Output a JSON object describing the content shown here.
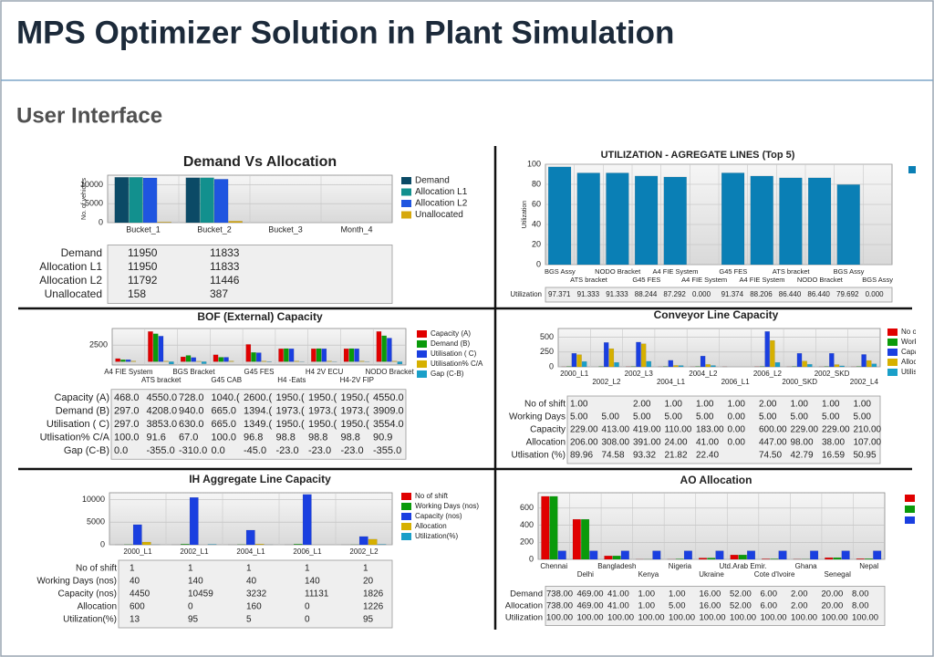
{
  "header": {
    "title": "MPS Optimizer Solution in Plant Simulation",
    "subtitle": "User Interface"
  },
  "chart_data": [
    {
      "type": "bar",
      "title": "Demand Vs Allocation",
      "y_label": "No. of vehicles",
      "categories": [
        "Bucket_1",
        "Bucket_2",
        "Bucket_3",
        "Month_4"
      ],
      "series": [
        {
          "name": "Demand",
          "color": "#0b4a66",
          "values": [
            11950,
            11833,
            null,
            null
          ]
        },
        {
          "name": "Allocation L1",
          "color": "#12908e",
          "values": [
            11950,
            11833,
            null,
            null
          ]
        },
        {
          "name": "Allocation L2",
          "color": "#1f55e0",
          "values": [
            11792,
            11446,
            null,
            null
          ]
        },
        {
          "name": "Unallocated",
          "color": "#d6a80c",
          "values": [
            158,
            387,
            null,
            null
          ]
        }
      ],
      "ylim": [
        0,
        12500
      ],
      "yticks": [
        0,
        5000,
        10000
      ],
      "grid": true,
      "table": {
        "rows": [
          {
            "label": "Demand",
            "cells": [
              "11950",
              "11833"
            ]
          },
          {
            "label": "Allocation L1",
            "cells": [
              "11950",
              "11833"
            ]
          },
          {
            "label": "Allocation L2",
            "cells": [
              "11792",
              "11446"
            ]
          },
          {
            "label": "Unallocated",
            "cells": [
              "158",
              "387"
            ]
          }
        ]
      }
    },
    {
      "type": "bar",
      "title": "UTILIZATION - AGREGATE LINES (Top 5)",
      "y_label": "Utilization",
      "categories": [
        "BGS Assy",
        "ATS bracket",
        "NODO Bracket",
        "G45 FES",
        "A4 FIE System",
        "A4 FIE System",
        "G45 FES",
        "A4 FIE System",
        "ATS bracket",
        "NODO Bracket",
        "BGS Assy",
        "BGS Assy"
      ],
      "series": [
        {
          "name": "Utilization",
          "color": "#0a7fb5",
          "values": [
            97.371,
            91.333,
            91.333,
            88.244,
            87.292,
            0.0,
            91.374,
            88.206,
            86.44,
            86.44,
            79.692,
            0.0
          ]
        }
      ],
      "ylim": [
        0,
        100
      ],
      "yticks": [
        0,
        20,
        40,
        60,
        80,
        100
      ],
      "grid": true,
      "table": {
        "rows": [
          {
            "label": "Utilization",
            "cells": [
              "97.371",
              "91.333",
              "91.333",
              "88.244",
              "87.292",
              "0.000",
              "91.374",
              "88.206",
              "86.440",
              "86.440",
              "79.692",
              "0.000"
            ]
          }
        ]
      }
    },
    {
      "type": "bar",
      "title": "BOF (External) Capacity",
      "categories": [
        "A4 FIE System",
        "ATS bracket",
        "BGS Bracket",
        "G45 CAB",
        "G45 FES",
        "H4 -Eats",
        "H4 2V ECU",
        "H4-2V FIP",
        "NODO Bracket"
      ],
      "series": [
        {
          "name": "Capacity (A)",
          "color": "#e00000",
          "values": [
            468,
            4550,
            728,
            1040,
            2600,
            1950,
            1950,
            1950,
            4550
          ]
        },
        {
          "name": "Demand (B)",
          "color": "#0a9a0a",
          "values": [
            297,
            4208,
            940,
            665,
            1394,
            1973,
            1973,
            1973,
            3909
          ]
        },
        {
          "name": "Utilisation ( C)",
          "color": "#1a3fe0",
          "values": [
            297,
            3853,
            630,
            665,
            1349,
            1950,
            1950,
            1950,
            3554
          ]
        },
        {
          "name": "Utilisation% C/A",
          "color": "#d6b000",
          "values": [
            100,
            91.6,
            67,
            100,
            96.8,
            98.8,
            98.8,
            98.8,
            90.9
          ]
        },
        {
          "name": "Gap (C-B)",
          "color": "#1a9fc8",
          "values": [
            0,
            -355,
            -310,
            0,
            -45,
            -23,
            -23,
            -23,
            -355
          ]
        }
      ],
      "ylim": [
        -500,
        5000
      ],
      "yticks": [
        2500
      ],
      "grid": true,
      "table": {
        "rows": [
          {
            "label": "Capacity (A)",
            "cells": [
              "468.0",
              "4550.0",
              "728.0",
              "1040.(",
              "2600.(",
              "1950.(",
              "1950.(",
              "1950.(",
              "4550.0"
            ]
          },
          {
            "label": "Demand (B)",
            "cells": [
              "297.0",
              "4208.0",
              "940.0",
              "665.0",
              "1394.(",
              "1973.(",
              "1973.(",
              "1973.(",
              "3909.0"
            ]
          },
          {
            "label": "Utilisation ( C)",
            "cells": [
              "297.0",
              "3853.0",
              "630.0",
              "665.0",
              "1349.(",
              "1950.(",
              "1950.(",
              "1950.(",
              "3554.0"
            ]
          },
          {
            "label": "Utlisation% C/A",
            "cells": [
              "100.0",
              "91.6",
              "67.0",
              "100.0",
              "96.8",
              "98.8",
              "98.8",
              "98.8",
              "90.9"
            ]
          },
          {
            "label": "Gap (C-B)",
            "cells": [
              "0.0",
              "-355.0",
              "-310.0",
              "0.0",
              "-45.0",
              "-23.0",
              "-23.0",
              "-23.0",
              "-355.0"
            ]
          }
        ]
      }
    },
    {
      "type": "bar",
      "title": "Conveyor Line Capacity",
      "categories": [
        "2000_L1",
        "2002_L2",
        "2002_L3",
        "2004_L1",
        "2004_L2",
        "2006_L1",
        "2006_L2",
        "2000_SKD",
        "2002_SKD",
        "2002_L4"
      ],
      "series": [
        {
          "name": "No of shift",
          "color": "#e00000",
          "values": [
            1,
            null,
            2,
            1,
            1,
            1,
            2,
            1,
            1,
            1
          ]
        },
        {
          "name": "Working Days",
          "color": "#0a9a0a",
          "values": [
            5,
            5,
            5,
            5,
            5,
            0,
            5,
            5,
            5,
            5
          ]
        },
        {
          "name": "Capacity",
          "color": "#1a3fe0",
          "values": [
            229,
            413,
            419,
            110,
            183,
            0,
            600,
            229,
            229,
            210
          ]
        },
        {
          "name": "Allocation",
          "color": "#d6b000",
          "values": [
            206,
            308,
            391,
            24,
            41,
            0,
            447,
            98,
            38,
            107
          ]
        },
        {
          "name": "Utilisation (%)",
          "color": "#1a9fc8",
          "values": [
            89.96,
            74.58,
            93.32,
            21.82,
            22.4,
            null,
            74.5,
            42.79,
            16.59,
            50.95
          ]
        }
      ],
      "ylim": [
        0,
        650
      ],
      "yticks": [
        0,
        250,
        500
      ],
      "grid": true,
      "table": {
        "rows": [
          {
            "label": "No of shift",
            "cells": [
              "1.00",
              "",
              "2.00",
              "1.00",
              "1.00",
              "1.00",
              "2.00",
              "1.00",
              "1.00",
              "1.00"
            ]
          },
          {
            "label": "Working Days",
            "cells": [
              "5.00",
              "5.00",
              "5.00",
              "5.00",
              "5.00",
              "0.00",
              "5.00",
              "5.00",
              "5.00",
              "5.00"
            ]
          },
          {
            "label": "Capacity",
            "cells": [
              "229.00",
              "413.00",
              "419.00",
              "110.00",
              "183.00",
              "0.00",
              "600.00",
              "229.00",
              "229.00",
              "210.00"
            ]
          },
          {
            "label": "Allocation",
            "cells": [
              "206.00",
              "308.00",
              "391.00",
              "24.00",
              "41.00",
              "0.00",
              "447.00",
              "98.00",
              "38.00",
              "107.00"
            ]
          },
          {
            "label": "Utlisation (%)",
            "cells": [
              "89.96",
              "74.58",
              "93.32",
              "21.82",
              "22.40",
              "",
              "74.50",
              "42.79",
              "16.59",
              "50.95"
            ]
          }
        ]
      }
    },
    {
      "type": "bar",
      "title": "IH Aggregate Line Capacity",
      "categories": [
        "2000_L1",
        "2002_L1",
        "2004_L1",
        "2006_L1",
        "2002_L2"
      ],
      "series": [
        {
          "name": "No of shift",
          "color": "#e00000",
          "values": [
            1,
            1,
            1,
            1,
            1
          ]
        },
        {
          "name": "Working Days (nos)",
          "color": "#0a9a0a",
          "values": [
            40,
            140,
            40,
            140,
            20
          ]
        },
        {
          "name": "Capacity (nos)",
          "color": "#1a3fe0",
          "values": [
            4450,
            10459,
            3232,
            11131,
            1826
          ]
        },
        {
          "name": "Allocation",
          "color": "#d6b000",
          "values": [
            600,
            0,
            160,
            0,
            1226
          ]
        },
        {
          "name": "Utilization(%)",
          "color": "#1a9fc8",
          "values": [
            13,
            95,
            5,
            0,
            95
          ]
        }
      ],
      "ylim": [
        0,
        11500
      ],
      "yticks": [
        0,
        5000,
        10000
      ],
      "grid": true,
      "table": {
        "rows": [
          {
            "label": "No of shift",
            "cells": [
              "1",
              "1",
              "1",
              "1",
              "1"
            ]
          },
          {
            "label": "Working Days (nos)",
            "cells": [
              "40",
              "140",
              "40",
              "140",
              "20"
            ]
          },
          {
            "label": "Capacity (nos)",
            "cells": [
              "4450",
              "10459",
              "3232",
              "11131",
              "1826"
            ]
          },
          {
            "label": "Allocation",
            "cells": [
              "600",
              "0",
              "160",
              "0",
              "1226"
            ]
          },
          {
            "label": "Utilization(%)",
            "cells": [
              "13",
              "95",
              "5",
              "0",
              "95"
            ]
          }
        ]
      }
    },
    {
      "type": "bar",
      "title": "AO Allocation",
      "categories": [
        "Chennai",
        "Delhi",
        "Bangladesh",
        "Kenya",
        "Nigeria",
        "Ukraine",
        "Utd.Arab Emir.",
        "Cote d'Ivoire",
        "Ghana",
        "Senegal",
        "Nepal"
      ],
      "series": [
        {
          "name": "Demand",
          "color": "#e00000",
          "values": [
            738,
            469,
            41,
            1,
            1,
            16,
            52,
            6,
            2,
            20,
            8
          ]
        },
        {
          "name": "Allocation",
          "color": "#0a9a0a",
          "values": [
            738,
            469,
            41,
            1,
            5,
            16,
            52,
            6,
            2,
            20,
            8
          ]
        },
        {
          "name": "Utilization",
          "color": "#1a3fe0",
          "values": [
            100,
            100,
            100,
            100,
            100,
            100,
            100,
            100,
            100,
            100,
            100
          ]
        }
      ],
      "ylim": [
        0,
        780
      ],
      "yticks": [
        0,
        200,
        400,
        600
      ],
      "grid": true,
      "table": {
        "rows": [
          {
            "label": "Demand",
            "cells": [
              "738.00",
              "469.00",
              "41.00",
              "1.00",
              "1.00",
              "16.00",
              "52.00",
              "6.00",
              "2.00",
              "20.00",
              "8.00"
            ]
          },
          {
            "label": "Allocation",
            "cells": [
              "738.00",
              "469.00",
              "41.00",
              "1.00",
              "5.00",
              "16.00",
              "52.00",
              "6.00",
              "2.00",
              "20.00",
              "8.00"
            ]
          },
          {
            "label": "Utilization",
            "cells": [
              "100.00",
              "100.00",
              "100.00",
              "100.00",
              "100.00",
              "100.00",
              "100.00",
              "100.00",
              "100.00",
              "100.00",
              "100.00"
            ]
          }
        ]
      }
    }
  ]
}
